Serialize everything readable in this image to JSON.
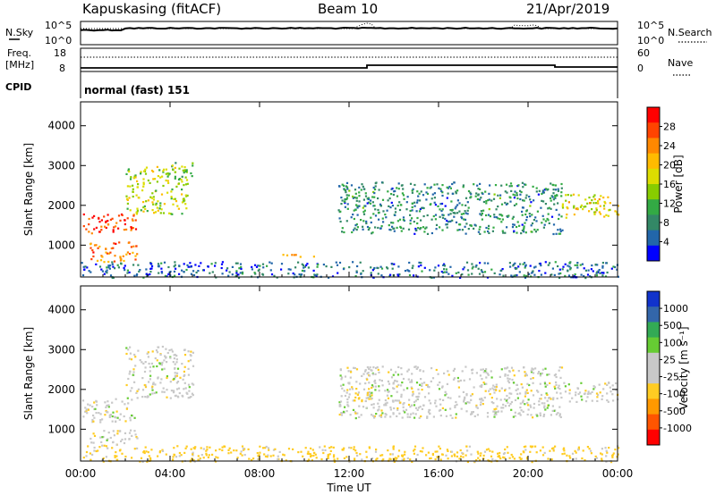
{
  "header": {
    "station": "Kapuskasing (fitACF)",
    "beam": "Beam 10",
    "date": "21/Apr/2019"
  },
  "summary_panel": {
    "left_label": "N.Sky",
    "left_ticks": [
      "10^5",
      "10^0"
    ],
    "right_ticks": [
      "10^5",
      "10^0"
    ],
    "right_label": "N.Search"
  },
  "freq_panel": {
    "left_label_top": "Freq.",
    "left_label_bottom": "[MHz]",
    "left_ticks": [
      "18",
      "8"
    ],
    "right_ticks": [
      "60",
      "0"
    ],
    "right_label": "Nave",
    "cpid_label": "CPID",
    "cpid_text": "normal (fast) 151"
  },
  "chart_data": [
    {
      "type": "heatmap",
      "name": "power",
      "ylabel": "Slant Range [km]",
      "xlabel": "",
      "x_ticks": [
        "00:00",
        "04:00",
        "08:00",
        "12:00",
        "16:00",
        "20:00",
        "00:00"
      ],
      "x_range_hours": [
        0,
        24
      ],
      "y_ticks": [
        1000,
        2000,
        3000,
        4000
      ],
      "ylim": [
        200,
        4600
      ],
      "colorbar": {
        "label": "Power [dB]",
        "ticks": [
          "28",
          "24",
          "20",
          "16",
          "12",
          "8",
          "4"
        ],
        "colors": [
          "#ff0000",
          "#ff4400",
          "#ff8800",
          "#ffbb00",
          "#dddd00",
          "#88cc00",
          "#33aa44",
          "#338866",
          "#2266aa",
          "#0000ff"
        ],
        "range": [
          0,
          32
        ]
      },
      "regions": [
        {
          "t": [
            0.0,
            2.5
          ],
          "r": [
            1300,
            1800
          ],
          "level": 28
        },
        {
          "t": [
            0.3,
            2.5
          ],
          "r": [
            600,
            1100
          ],
          "level": 25
        },
        {
          "t": [
            2.0,
            4.8
          ],
          "r": [
            1800,
            3000
          ],
          "level": 16
        },
        {
          "t": [
            4.0,
            5.0
          ],
          "r": [
            2700,
            3100
          ],
          "level": 12
        },
        {
          "t": [
            11.5,
            21.5
          ],
          "r": [
            1300,
            2600
          ],
          "level": 8
        },
        {
          "t": [
            21.5,
            24.0
          ],
          "r": [
            1700,
            2300
          ],
          "level": 18
        },
        {
          "t": [
            9.0,
            10.5
          ],
          "r": [
            700,
            800
          ],
          "level": 24
        },
        {
          "t": [
            0.0,
            24.0
          ],
          "r": [
            200,
            600
          ],
          "level": 6
        }
      ]
    },
    {
      "type": "heatmap",
      "name": "velocity",
      "ylabel": "Slant Range [km]",
      "xlabel": "Time UT",
      "x_ticks": [
        "00:00",
        "04:00",
        "08:00",
        "12:00",
        "16:00",
        "20:00",
        "00:00"
      ],
      "x_range_hours": [
        0,
        24
      ],
      "y_ticks": [
        1000,
        2000,
        3000,
        4000
      ],
      "ylim": [
        200,
        4600
      ],
      "colorbar": {
        "label": "Velocity [m s⁻¹]",
        "ticks": [
          "1000",
          "500",
          "100",
          "25",
          "-25",
          "-100",
          "-500",
          "-1000"
        ],
        "colors": [
          "#1133cc",
          "#3366aa",
          "#33aa55",
          "#66cc33",
          "#c8c8c8",
          "#c8c8c8",
          "#ffcc22",
          "#ff9900",
          "#ff5500",
          "#ff0000"
        ],
        "range": [
          -1200,
          1200
        ]
      },
      "regions": [
        {
          "t": [
            0.0,
            2.5
          ],
          "r": [
            1200,
            1800
          ],
          "v": 0
        },
        {
          "t": [
            0.3,
            2.5
          ],
          "r": [
            600,
            1000
          ],
          "v": 0
        },
        {
          "t": [
            2.0,
            5.0
          ],
          "r": [
            1800,
            3100
          ],
          "v": 0
        },
        {
          "t": [
            11.5,
            21.5
          ],
          "r": [
            1300,
            2600
          ],
          "v": 0
        },
        {
          "t": [
            21.5,
            24.0
          ],
          "r": [
            1700,
            2200
          ],
          "v": 0
        },
        {
          "t": [
            12.0,
            13.0
          ],
          "r": [
            1700,
            2100
          ],
          "v": -300
        },
        {
          "t": [
            0.0,
            24.0
          ],
          "r": [
            200,
            600
          ],
          "v": -150
        }
      ]
    }
  ]
}
